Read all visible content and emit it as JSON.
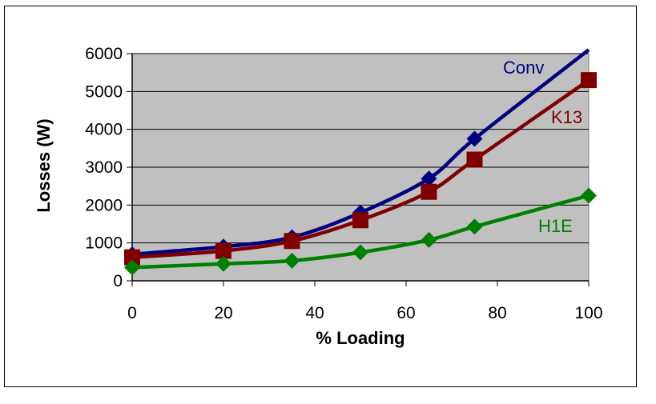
{
  "chart_data": {
    "type": "line",
    "title": "",
    "xlabel": "% Loading",
    "ylabel": "Losses (W)",
    "x": [
      0,
      20,
      35,
      50,
      65,
      75,
      100
    ],
    "xlim": [
      0,
      100
    ],
    "ylim": [
      0,
      6000
    ],
    "xticks": [
      "0",
      "20",
      "40",
      "60",
      "80",
      "100"
    ],
    "yticks": [
      "0",
      "1000",
      "2000",
      "3000",
      "4000",
      "5000",
      "6000"
    ],
    "grid": "horizontal",
    "plot_background": "#c0c0c0",
    "legend": "none",
    "series": [
      {
        "name": "Conv",
        "color": "#000080",
        "marker": "diamond",
        "values": [
          700,
          900,
          1150,
          1800,
          2700,
          3750,
          6100
        ]
      },
      {
        "name": "K13",
        "color": "#800000",
        "marker": "square",
        "values": [
          620,
          790,
          1050,
          1600,
          2350,
          3200,
          5300
        ]
      },
      {
        "name": "H1E",
        "color": "#008000",
        "marker": "diamond",
        "values": [
          350,
          450,
          530,
          750,
          1080,
          1430,
          2250
        ]
      }
    ]
  }
}
